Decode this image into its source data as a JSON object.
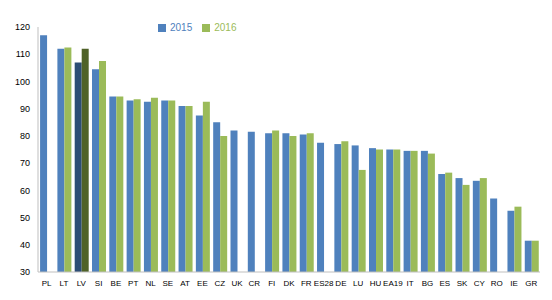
{
  "chart_data": {
    "type": "bar",
    "categories": [
      "PL",
      "LT",
      "LV",
      "SI",
      "BE",
      "PT",
      "NL",
      "SE",
      "AT",
      "EE",
      "CZ",
      "UK",
      "CR",
      "FI",
      "DK",
      "FR",
      "ES28",
      "DE",
      "LU",
      "HU",
      "EA19",
      "IT",
      "BG",
      "ES",
      "SK",
      "CY",
      "RO",
      "IE",
      "GR"
    ],
    "series": [
      {
        "name": "2015",
        "color": "#4f81bd",
        "colors": [
          "#4f81bd",
          "#4f81bd",
          "#2c4d75",
          "#4f81bd",
          "#4f81bd",
          "#4f81bd",
          "#4f81bd",
          "#4f81bd",
          "#4f81bd",
          "#4f81bd",
          "#4f81bd",
          "#4f81bd",
          "#4f81bd",
          "#4f81bd",
          "#4f81bd",
          "#4f81bd",
          "#4f81bd",
          "#4f81bd",
          "#4f81bd",
          "#4f81bd",
          "#4f81bd",
          "#4f81bd",
          "#4f81bd",
          "#4f81bd",
          "#4f81bd",
          "#4f81bd",
          "#4f81bd",
          "#4f81bd",
          "#4f81bd"
        ],
        "values": [
          117,
          112,
          107,
          104.5,
          94.5,
          93,
          92.5,
          93,
          91,
          87.5,
          85,
          82,
          81.5,
          81,
          81,
          80.5,
          77.5,
          77,
          76.5,
          75.5,
          75,
          74.5,
          74.5,
          66,
          64.5,
          63.5,
          57,
          52.5,
          41.5
        ]
      },
      {
        "name": "2016",
        "color": "#9bbb59",
        "colors": [
          "#9bbb59",
          "#9bbb59",
          "#4f6228",
          "#9bbb59",
          "#9bbb59",
          "#9bbb59",
          "#9bbb59",
          "#9bbb59",
          "#9bbb59",
          "#9bbb59",
          "#9bbb59",
          "#9bbb59",
          "#9bbb59",
          "#9bbb59",
          "#9bbb59",
          "#9bbb59",
          "#9bbb59",
          "#9bbb59",
          "#9bbb59",
          "#9bbb59",
          "#9bbb59",
          "#9bbb59",
          "#9bbb59",
          "#9bbb59",
          "#9bbb59",
          "#9bbb59",
          "#9bbb59",
          "#9bbb59",
          "#9bbb59"
        ],
        "values": [
          null,
          112.5,
          112,
          107.5,
          94.5,
          93.5,
          94,
          93,
          91,
          92.5,
          80,
          null,
          null,
          82,
          80,
          81,
          null,
          78,
          67.5,
          75,
          75,
          74.5,
          73.5,
          66.5,
          62,
          64.5,
          null,
          54,
          41.5
        ]
      }
    ],
    "ylim": [
      30,
      120
    ],
    "yticks": [
      30,
      40,
      50,
      60,
      70,
      80,
      90,
      100,
      110,
      120
    ],
    "grid": false,
    "legend": "top"
  }
}
